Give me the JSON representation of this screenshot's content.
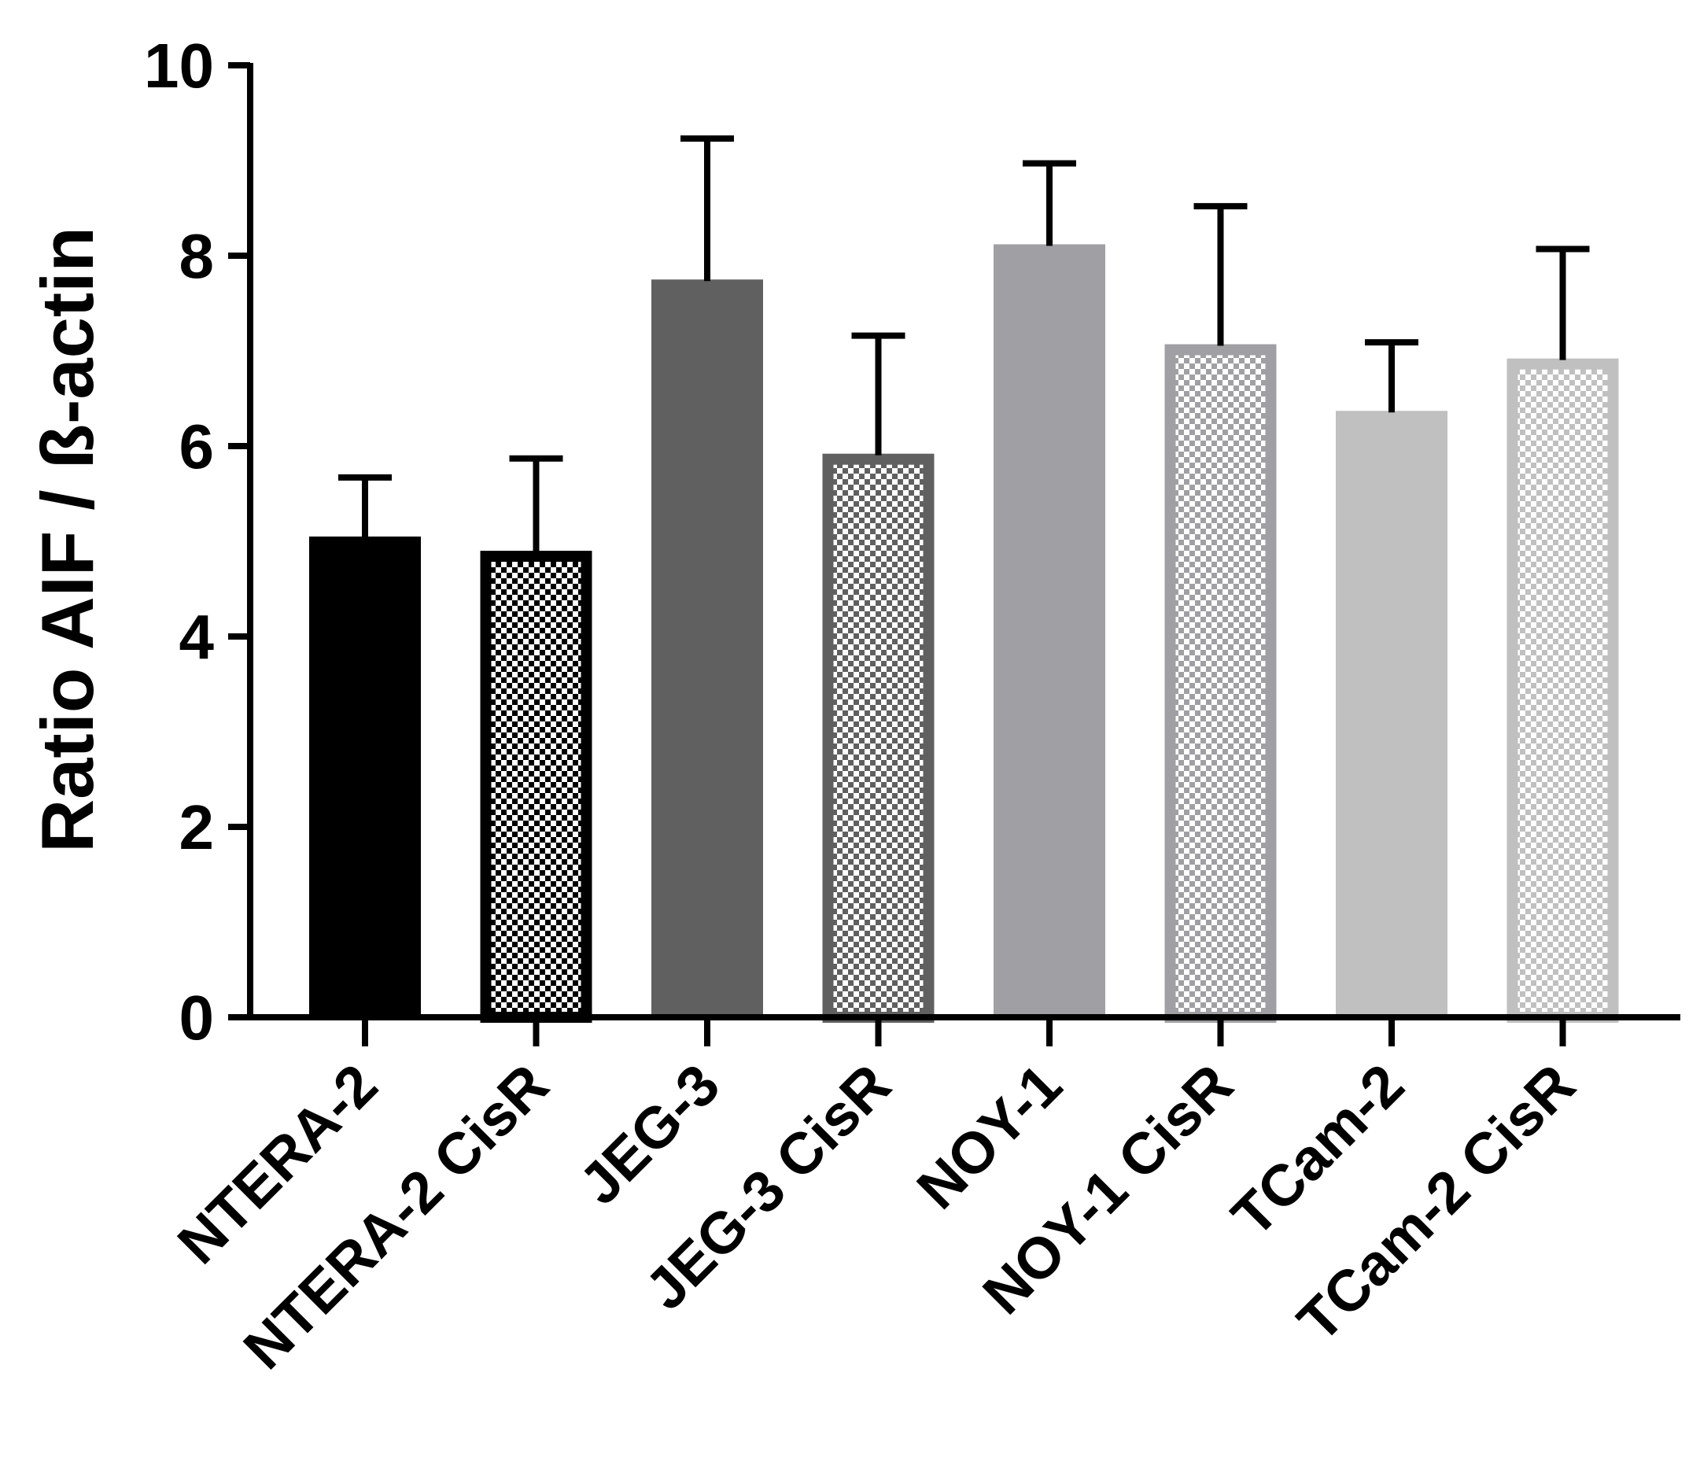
{
  "chart_data": {
    "type": "bar",
    "title": "",
    "xlabel": "",
    "ylabel": "Ratio AIF / ß-actin",
    "ylim": [
      0,
      10
    ],
    "yticks": [
      "0",
      "2",
      "4",
      "6",
      "8",
      "10"
    ],
    "grid": false,
    "legend": "none",
    "categories": [
      "NTERA-2",
      "NTERA-2 CisR",
      "JEG-3",
      "JEG-3 CisR",
      "NOY-1",
      "NOY-1 CisR",
      "TCam-2",
      "TCam-2 CisR"
    ],
    "values": [
      5.05,
      4.9,
      7.75,
      5.92,
      8.12,
      7.07,
      6.37,
      6.92
    ],
    "error": [
      0.62,
      0.97,
      1.48,
      1.24,
      0.85,
      1.45,
      0.72,
      1.15
    ],
    "bar_colors": [
      "#000000",
      "#000000",
      "#606060",
      "#606060",
      "#a0a0a4",
      "#a0a0a4",
      "#c0c0c0",
      "#c0c0c0"
    ],
    "patterned": [
      false,
      true,
      false,
      true,
      false,
      true,
      false,
      true
    ]
  }
}
